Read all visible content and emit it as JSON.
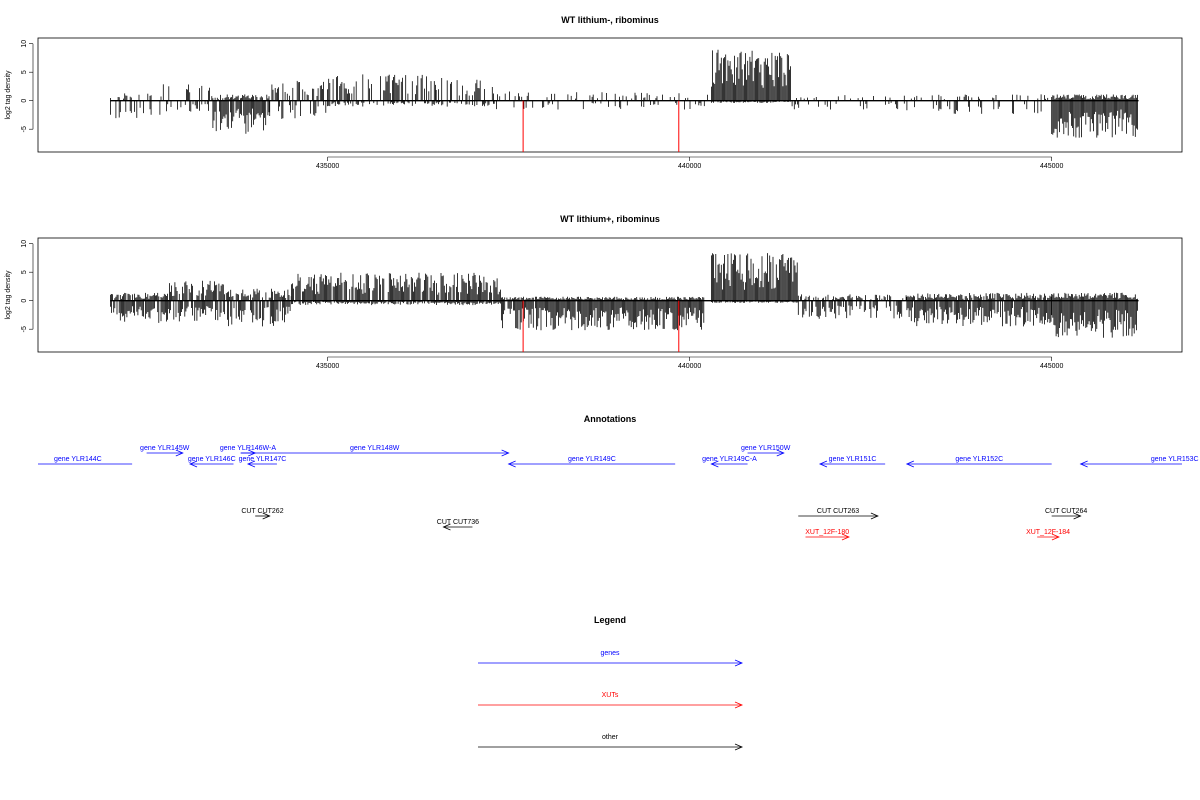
{
  "colors": {
    "genes": "#0000ff",
    "xuts": "#ff0000",
    "other": "#000000"
  },
  "chart_data": [
    {
      "type": "bar",
      "title": "WT lithium-, ribominus",
      "ylabel": "log2 tag density",
      "xlim": [
        431000,
        446800
      ],
      "ylim": [
        -9,
        11
      ],
      "yticks": [
        -5,
        0,
        5,
        10
      ],
      "xticks": [
        435000,
        440000,
        445000
      ],
      "x_range": [
        432000,
        446200
      ],
      "segments": [
        {
          "from": 432000,
          "to": 432700,
          "pos": 1.0,
          "neg": 2.5,
          "density": 0.35
        },
        {
          "from": 432700,
          "to": 433400,
          "pos": 2.2,
          "neg": 1.5,
          "density": 0.25
        },
        {
          "from": 433400,
          "to": 434200,
          "pos": 0.8,
          "neg": 4.5,
          "density": 0.85
        },
        {
          "from": 434200,
          "to": 435000,
          "pos": 2.5,
          "neg": 2.5,
          "density": 0.35
        },
        {
          "from": 435000,
          "to": 436500,
          "pos": 3.5,
          "neg": 0.8,
          "density": 0.55
        },
        {
          "from": 436500,
          "to": 437300,
          "pos": 3.0,
          "neg": 0.8,
          "density": 0.45
        },
        {
          "from": 437300,
          "to": 440300,
          "pos": 1.2,
          "neg": 1.2,
          "density": 0.18
        },
        {
          "from": 440300,
          "to": 441400,
          "pos": 6.5,
          "neg": 0.3,
          "density": 1.0
        },
        {
          "from": 441400,
          "to": 443000,
          "pos": 0.8,
          "neg": 1.2,
          "density": 0.15
        },
        {
          "from": 443000,
          "to": 445000,
          "pos": 0.8,
          "neg": 1.8,
          "density": 0.3
        },
        {
          "from": 445000,
          "to": 446200,
          "pos": 0.8,
          "neg": 5.0,
          "density": 1.0
        }
      ],
      "highlights": [
        {
          "x": 437700,
          "neg": 9.0
        },
        {
          "x": 439850,
          "neg": 9.0
        }
      ]
    },
    {
      "type": "bar",
      "title": "WT lithium+, ribominus",
      "ylabel": "log2 tag density",
      "xlim": [
        431000,
        446800
      ],
      "ylim": [
        -9,
        11
      ],
      "yticks": [
        -5,
        0,
        5,
        10
      ],
      "xticks": [
        435000,
        440000,
        445000
      ],
      "x_range": [
        432000,
        446200
      ],
      "segments": [
        {
          "from": 432000,
          "to": 432800,
          "pos": 1.0,
          "neg": 3.0,
          "density": 0.8
        },
        {
          "from": 432800,
          "to": 433600,
          "pos": 2.5,
          "neg": 3.0,
          "density": 0.8
        },
        {
          "from": 433600,
          "to": 434500,
          "pos": 1.5,
          "neg": 3.5,
          "density": 0.7
        },
        {
          "from": 434500,
          "to": 437400,
          "pos": 3.5,
          "neg": 0.6,
          "density": 0.9
        },
        {
          "from": 437400,
          "to": 440200,
          "pos": 0.5,
          "neg": 4.0,
          "density": 0.95
        },
        {
          "from": 440300,
          "to": 441500,
          "pos": 6.0,
          "neg": 0.3,
          "density": 1.0
        },
        {
          "from": 441500,
          "to": 443000,
          "pos": 0.8,
          "neg": 2.5,
          "density": 0.5
        },
        {
          "from": 443000,
          "to": 445000,
          "pos": 1.0,
          "neg": 3.5,
          "density": 0.9
        },
        {
          "from": 445000,
          "to": 446200,
          "pos": 1.0,
          "neg": 5.0,
          "density": 1.0
        }
      ],
      "highlights": [
        {
          "x": 437700,
          "neg": 9.0
        },
        {
          "x": 439850,
          "neg": 9.0
        }
      ]
    }
  ],
  "annotations": {
    "title": "Annotations",
    "genes": [
      {
        "label": "gene YLR144C",
        "start": 432300,
        "end": 430800,
        "row": 1
      },
      {
        "label": "gene YLR145W",
        "start": 432500,
        "end": 433000,
        "row": 0
      },
      {
        "label": "gene YLR146C",
        "start": 433700,
        "end": 433100,
        "row": 1
      },
      {
        "label": "gene YLR146W-A",
        "start": 433800,
        "end": 434000,
        "row": 0
      },
      {
        "label": "gene YLR147C",
        "start": 434300,
        "end": 433900,
        "row": 1
      },
      {
        "label": "gene YLR148W",
        "start": 433800,
        "end": 437500,
        "row": 0
      },
      {
        "label": "gene YLR149C",
        "start": 439800,
        "end": 437500,
        "row": 1
      },
      {
        "label": "gene YLR149C-A",
        "start": 440800,
        "end": 440300,
        "row": 1
      },
      {
        "label": "gene YLR150W",
        "start": 440800,
        "end": 441300,
        "row": 0
      },
      {
        "label": "gene YLR151C",
        "start": 442700,
        "end": 441800,
        "row": 1
      },
      {
        "label": "gene YLR152C",
        "start": 445000,
        "end": 443000,
        "row": 1
      },
      {
        "label": "gene YLR153C",
        "start": 448000,
        "end": 445400,
        "row": 1
      }
    ],
    "cuts": [
      {
        "label": "CUT CUT262",
        "start": 434000,
        "end": 434200,
        "row": 0
      },
      {
        "label": "CUT CUT736",
        "start": 437000,
        "end": 436600,
        "row": 1
      },
      {
        "label": "CUT CUT263",
        "start": 441500,
        "end": 442600,
        "row": 0
      },
      {
        "label": "CUT CUT264",
        "start": 445000,
        "end": 445400,
        "row": 0
      }
    ],
    "xuts": [
      {
        "label": "XUT_12F-180",
        "start": 441600,
        "end": 442200
      },
      {
        "label": "XUT_12F-184",
        "start": 444800,
        "end": 445100
      }
    ]
  },
  "legend": {
    "title": "Legend",
    "items": [
      {
        "label": "genes",
        "color": "#0000ff"
      },
      {
        "label": "XUTs",
        "color": "#ff0000"
      },
      {
        "label": "other",
        "color": "#000000"
      }
    ]
  }
}
